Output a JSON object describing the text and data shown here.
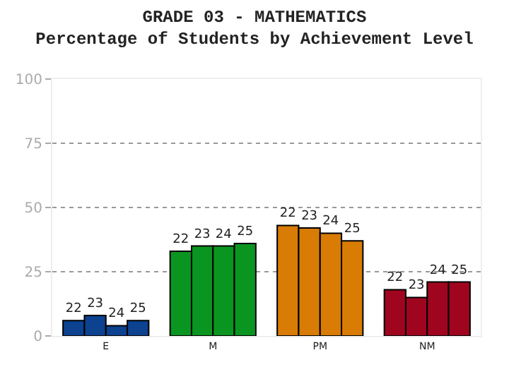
{
  "chart_data": {
    "type": "bar",
    "title": "GRADE 03 - MATHEMATICS",
    "subtitle": "Percentage of Students by Achievement Level",
    "categories": [
      "E",
      "M",
      "PM",
      "NM"
    ],
    "series": [
      {
        "name": "22",
        "colors": [
          "#0c4290",
          "#0a9520",
          "#d87c05",
          "#a00520"
        ],
        "values": [
          6,
          33,
          43,
          18
        ]
      },
      {
        "name": "23",
        "colors": [
          "#0c4290",
          "#0a9520",
          "#d87c05",
          "#a00520"
        ],
        "values": [
          8,
          35,
          42,
          15
        ]
      },
      {
        "name": "24",
        "colors": [
          "#0c4290",
          "#0a9520",
          "#d87c05",
          "#a00520"
        ],
        "values": [
          4,
          35,
          40,
          21
        ]
      },
      {
        "name": "25",
        "colors": [
          "#0c4290",
          "#0a9520",
          "#d87c05",
          "#a00520"
        ],
        "values": [
          6,
          36,
          37,
          21
        ]
      }
    ],
    "ylim": [
      0,
      100
    ],
    "yticks": [
      0,
      25,
      50,
      75,
      100
    ],
    "grid": "y",
    "legend": false
  }
}
